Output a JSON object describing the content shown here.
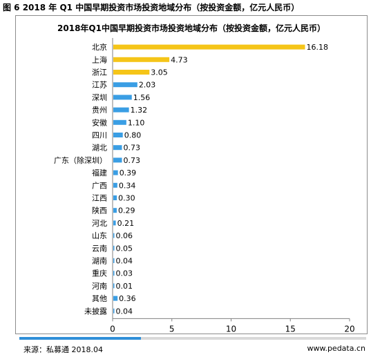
{
  "figure_title": "图 6 2018 年 Q1 中国早期投资市场投资地域分布（按投资金额，亿元人民币）",
  "source": "来源：私募通 2018.04",
  "website": "www.pedata.cn",
  "chart_data": {
    "type": "bar",
    "orientation": "horizontal",
    "title": "2018年Q1中国早期投资市场投资地域分布（按投资金额，亿元人民币）",
    "categories": [
      "北京",
      "上海",
      "浙江",
      "江苏",
      "深圳",
      "贵州",
      "安徽",
      "四川",
      "湖北",
      "广东（除深圳）",
      "福建",
      "广西",
      "江西",
      "陕西",
      "河北",
      "山东",
      "云南",
      "湖南",
      "重庆",
      "河南",
      "其他",
      "未披露"
    ],
    "values": [
      16.18,
      4.73,
      3.05,
      2.03,
      1.56,
      1.32,
      1.1,
      0.8,
      0.73,
      0.73,
      0.39,
      0.34,
      0.3,
      0.29,
      0.21,
      0.06,
      0.05,
      0.04,
      0.03,
      0.01,
      0.36,
      0.04
    ],
    "value_labels": [
      "16.18",
      "4.73",
      "3.05",
      "2.03",
      "1.56",
      "1.32",
      "1.10",
      "0.80",
      "0.73",
      "0.73",
      "0.39",
      "0.34",
      "0.30",
      "0.29",
      "0.21",
      "0.06",
      "0.05",
      "0.04",
      "0.03",
      "0.01",
      "0.36",
      "0.04"
    ],
    "xlim": [
      0,
      20
    ],
    "xticks": [
      "0",
      "5",
      "10",
      "15",
      "20"
    ],
    "xlabel": "",
    "ylabel": "",
    "grid": false,
    "legend": "none",
    "colors": {
      "highlight": "#f5c518",
      "default": "#3a9ee4"
    },
    "highlighted_top_n": 3
  }
}
